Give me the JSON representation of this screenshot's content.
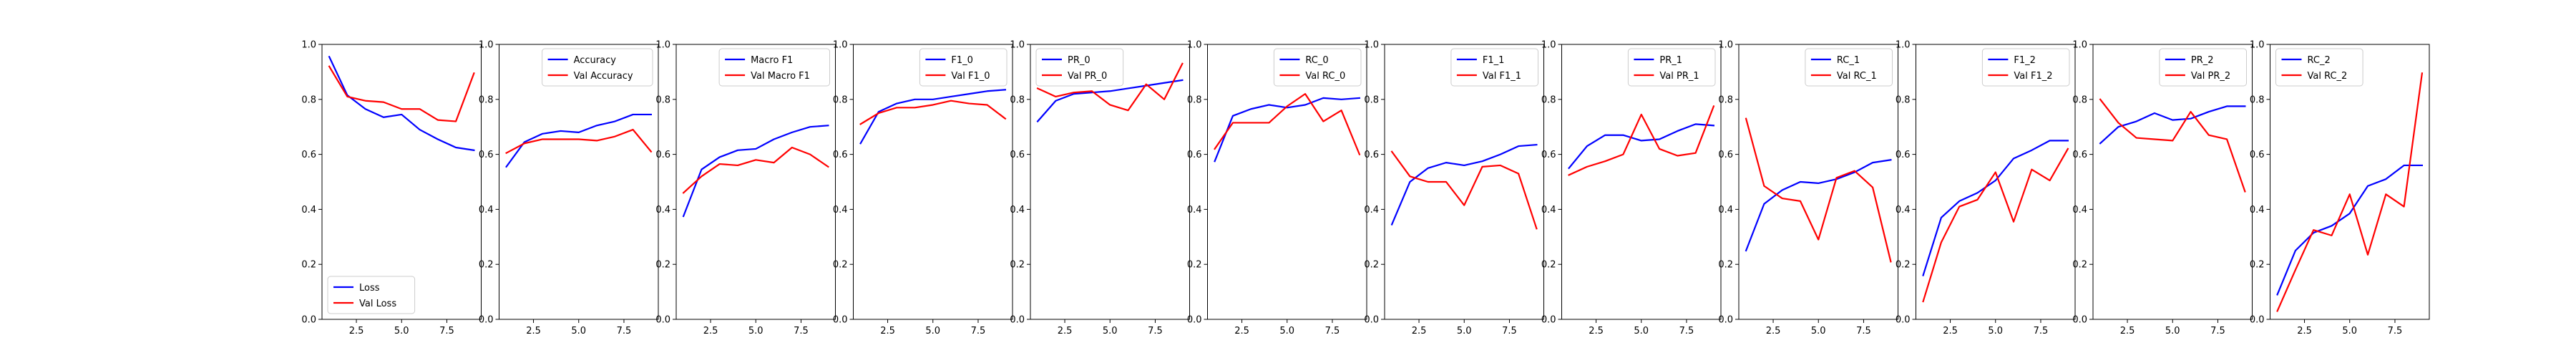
{
  "chart_data": [
    {
      "type": "line",
      "ylim": [
        0,
        1
      ],
      "ytick_labels": [
        "0.0",
        "0.2",
        "0.4",
        "0.6",
        "0.8",
        "1.0"
      ],
      "xlim": [
        0.6,
        9.4
      ],
      "xtick_values": [
        2.5,
        5.0,
        7.5
      ],
      "xtick_labels": [
        "2.5",
        "5.0",
        "7.5"
      ],
      "x": [
        1,
        2,
        3,
        4,
        5,
        6,
        7,
        8,
        9
      ],
      "legend_position": "lower-left",
      "series": [
        {
          "name": "Loss",
          "color": "#0000ff",
          "values": [
            0.955,
            0.815,
            0.765,
            0.735,
            0.745,
            0.69,
            0.655,
            0.625,
            0.615
          ]
        },
        {
          "name": "Val Loss",
          "color": "#ff0000",
          "values": [
            0.92,
            0.81,
            0.795,
            0.79,
            0.765,
            0.765,
            0.725,
            0.72,
            0.895
          ]
        }
      ]
    },
    {
      "type": "line",
      "ylim": [
        0,
        1
      ],
      "ytick_labels": [
        "0.0",
        "0.2",
        "0.4",
        "0.6",
        "0.8",
        "1.0"
      ],
      "xlim": [
        0.6,
        9.4
      ],
      "xtick_values": [
        2.5,
        5.0,
        7.5
      ],
      "xtick_labels": [
        "2.5",
        "5.0",
        "7.5"
      ],
      "x": [
        1,
        2,
        3,
        4,
        5,
        6,
        7,
        8,
        9
      ],
      "legend_position": "top-right",
      "series": [
        {
          "name": "Accuracy",
          "color": "#0000ff",
          "values": [
            0.555,
            0.645,
            0.675,
            0.685,
            0.68,
            0.705,
            0.72,
            0.745,
            0.745
          ]
        },
        {
          "name": "Val Accuracy",
          "color": "#ff0000",
          "values": [
            0.605,
            0.64,
            0.655,
            0.655,
            0.655,
            0.65,
            0.665,
            0.69,
            0.61
          ]
        }
      ]
    },
    {
      "type": "line",
      "ylim": [
        0,
        1
      ],
      "ytick_labels": [
        "0.0",
        "0.2",
        "0.4",
        "0.6",
        "0.8",
        "1.0"
      ],
      "xlim": [
        0.6,
        9.4
      ],
      "xtick_values": [
        2.5,
        5.0,
        7.5
      ],
      "xtick_labels": [
        "2.5",
        "5.0",
        "7.5"
      ],
      "x": [
        1,
        2,
        3,
        4,
        5,
        6,
        7,
        8,
        9
      ],
      "legend_position": "top-right",
      "series": [
        {
          "name": "Macro F1",
          "color": "#0000ff",
          "values": [
            0.375,
            0.545,
            0.59,
            0.615,
            0.62,
            0.655,
            0.68,
            0.7,
            0.705
          ]
        },
        {
          "name": "Val Macro F1",
          "color": "#ff0000",
          "values": [
            0.46,
            0.52,
            0.565,
            0.56,
            0.58,
            0.57,
            0.625,
            0.6,
            0.555
          ]
        }
      ]
    },
    {
      "type": "line",
      "ylim": [
        0,
        1
      ],
      "ytick_labels": [
        "0.0",
        "0.2",
        "0.4",
        "0.6",
        "0.8",
        "1.0"
      ],
      "xlim": [
        0.6,
        9.4
      ],
      "xtick_values": [
        2.5,
        5.0,
        7.5
      ],
      "xtick_labels": [
        "2.5",
        "5.0",
        "7.5"
      ],
      "x": [
        1,
        2,
        3,
        4,
        5,
        6,
        7,
        8,
        9
      ],
      "legend_position": "top-right",
      "series": [
        {
          "name": "F1_0",
          "color": "#0000ff",
          "values": [
            0.64,
            0.755,
            0.785,
            0.8,
            0.8,
            0.81,
            0.82,
            0.83,
            0.835
          ]
        },
        {
          "name": "Val F1_0",
          "color": "#ff0000",
          "values": [
            0.71,
            0.75,
            0.77,
            0.77,
            0.78,
            0.795,
            0.785,
            0.78,
            0.73
          ]
        }
      ]
    },
    {
      "type": "line",
      "ylim": [
        0,
        1
      ],
      "ytick_labels": [
        "0.0",
        "0.2",
        "0.4",
        "0.6",
        "0.8",
        "1.0"
      ],
      "xlim": [
        0.6,
        9.4
      ],
      "xtick_values": [
        2.5,
        5.0,
        7.5
      ],
      "xtick_labels": [
        "2.5",
        "5.0",
        "7.5"
      ],
      "x": [
        1,
        2,
        3,
        4,
        5,
        6,
        7,
        8,
        9
      ],
      "legend_position": "top-left",
      "series": [
        {
          "name": "PR_0",
          "color": "#0000ff",
          "values": [
            0.72,
            0.795,
            0.82,
            0.825,
            0.83,
            0.84,
            0.85,
            0.86,
            0.87
          ]
        },
        {
          "name": "Val PR_0",
          "color": "#ff0000",
          "values": [
            0.84,
            0.81,
            0.825,
            0.83,
            0.78,
            0.76,
            0.855,
            0.8,
            0.93
          ]
        }
      ]
    },
    {
      "type": "line",
      "ylim": [
        0,
        1
      ],
      "ytick_labels": [
        "0.0",
        "0.2",
        "0.4",
        "0.6",
        "0.8",
        "1.0"
      ],
      "xlim": [
        0.6,
        9.4
      ],
      "xtick_values": [
        2.5,
        5.0,
        7.5
      ],
      "xtick_labels": [
        "2.5",
        "5.0",
        "7.5"
      ],
      "x": [
        1,
        2,
        3,
        4,
        5,
        6,
        7,
        8,
        9
      ],
      "legend_position": "top-right",
      "series": [
        {
          "name": "RC_0",
          "color": "#0000ff",
          "values": [
            0.575,
            0.74,
            0.765,
            0.78,
            0.77,
            0.78,
            0.805,
            0.8,
            0.805
          ]
        },
        {
          "name": "Val RC_0",
          "color": "#ff0000",
          "values": [
            0.62,
            0.715,
            0.715,
            0.715,
            0.775,
            0.82,
            0.72,
            0.76,
            0.6
          ]
        }
      ]
    },
    {
      "type": "line",
      "ylim": [
        0,
        1
      ],
      "ytick_labels": [
        "0.0",
        "0.2",
        "0.4",
        "0.6",
        "0.8",
        "1.0"
      ],
      "xlim": [
        0.6,
        9.4
      ],
      "xtick_values": [
        2.5,
        5.0,
        7.5
      ],
      "xtick_labels": [
        "2.5",
        "5.0",
        "7.5"
      ],
      "x": [
        1,
        2,
        3,
        4,
        5,
        6,
        7,
        8,
        9
      ],
      "legend_position": "top-right",
      "series": [
        {
          "name": "F1_1",
          "color": "#0000ff",
          "values": [
            0.345,
            0.5,
            0.55,
            0.57,
            0.56,
            0.575,
            0.6,
            0.63,
            0.635
          ]
        },
        {
          "name": "Val F1_1",
          "color": "#ff0000",
          "values": [
            0.61,
            0.52,
            0.5,
            0.5,
            0.415,
            0.555,
            0.56,
            0.53,
            0.33
          ]
        }
      ]
    },
    {
      "type": "line",
      "ylim": [
        0,
        1
      ],
      "ytick_labels": [
        "0.0",
        "0.2",
        "0.4",
        "0.6",
        "0.8",
        "1.0"
      ],
      "xlim": [
        0.6,
        9.4
      ],
      "xtick_values": [
        2.5,
        5.0,
        7.5
      ],
      "xtick_labels": [
        "2.5",
        "5.0",
        "7.5"
      ],
      "x": [
        1,
        2,
        3,
        4,
        5,
        6,
        7,
        8,
        9
      ],
      "legend_position": "top-right",
      "series": [
        {
          "name": "PR_1",
          "color": "#0000ff",
          "values": [
            0.55,
            0.63,
            0.67,
            0.67,
            0.65,
            0.655,
            0.685,
            0.71,
            0.705
          ]
        },
        {
          "name": "Val PR_1",
          "color": "#ff0000",
          "values": [
            0.525,
            0.555,
            0.575,
            0.6,
            0.745,
            0.62,
            0.595,
            0.605,
            0.775
          ]
        }
      ]
    },
    {
      "type": "line",
      "ylim": [
        0,
        1
      ],
      "ytick_labels": [
        "0.0",
        "0.2",
        "0.4",
        "0.6",
        "0.8",
        "1.0"
      ],
      "xlim": [
        0.6,
        9.4
      ],
      "xtick_values": [
        2.5,
        5.0,
        7.5
      ],
      "xtick_labels": [
        "2.5",
        "5.0",
        "7.5"
      ],
      "x": [
        1,
        2,
        3,
        4,
        5,
        6,
        7,
        8,
        9
      ],
      "legend_position": "top-right",
      "series": [
        {
          "name": "RC_1",
          "color": "#0000ff",
          "values": [
            0.25,
            0.42,
            0.47,
            0.5,
            0.495,
            0.51,
            0.535,
            0.57,
            0.58
          ]
        },
        {
          "name": "Val RC_1",
          "color": "#ff0000",
          "values": [
            0.73,
            0.485,
            0.44,
            0.43,
            0.29,
            0.515,
            0.54,
            0.48,
            0.21
          ]
        }
      ]
    },
    {
      "type": "line",
      "ylim": [
        0,
        1
      ],
      "ytick_labels": [
        "0.0",
        "0.2",
        "0.4",
        "0.6",
        "0.8",
        "1.0"
      ],
      "xlim": [
        0.6,
        9.4
      ],
      "xtick_values": [
        2.5,
        5.0,
        7.5
      ],
      "xtick_labels": [
        "2.5",
        "5.0",
        "7.5"
      ],
      "x": [
        1,
        2,
        3,
        4,
        5,
        6,
        7,
        8,
        9
      ],
      "legend_position": "top-right",
      "series": [
        {
          "name": "F1_2",
          "color": "#0000ff",
          "values": [
            0.16,
            0.37,
            0.43,
            0.46,
            0.505,
            0.585,
            0.615,
            0.65,
            0.65
          ]
        },
        {
          "name": "Val F1_2",
          "color": "#ff0000",
          "values": [
            0.065,
            0.28,
            0.41,
            0.435,
            0.535,
            0.355,
            0.545,
            0.505,
            0.62
          ]
        }
      ]
    },
    {
      "type": "line",
      "ylim": [
        0,
        1
      ],
      "ytick_labels": [
        "0.0",
        "0.2",
        "0.4",
        "0.6",
        "0.8",
        "1.0"
      ],
      "xlim": [
        0.6,
        9.4
      ],
      "xtick_values": [
        2.5,
        5.0,
        7.5
      ],
      "xtick_labels": [
        "2.5",
        "5.0",
        "7.5"
      ],
      "x": [
        1,
        2,
        3,
        4,
        5,
        6,
        7,
        8,
        9
      ],
      "legend_position": "top-right",
      "series": [
        {
          "name": "PR_2",
          "color": "#0000ff",
          "values": [
            0.64,
            0.7,
            0.72,
            0.75,
            0.725,
            0.73,
            0.755,
            0.775,
            0.775
          ]
        },
        {
          "name": "Val PR_2",
          "color": "#ff0000",
          "values": [
            0.8,
            0.715,
            0.66,
            0.655,
            0.65,
            0.755,
            0.67,
            0.655,
            0.465
          ]
        }
      ]
    },
    {
      "type": "line",
      "ylim": [
        0,
        1
      ],
      "ytick_labels": [
        "0.0",
        "0.2",
        "0.4",
        "0.6",
        "0.8",
        "1.0"
      ],
      "xlim": [
        0.6,
        9.4
      ],
      "xtick_values": [
        2.5,
        5.0,
        7.5
      ],
      "xtick_labels": [
        "2.5",
        "5.0",
        "7.5"
      ],
      "x": [
        1,
        2,
        3,
        4,
        5,
        6,
        7,
        8,
        9
      ],
      "legend_position": "top-left",
      "series": [
        {
          "name": "RC_2",
          "color": "#0000ff",
          "values": [
            0.09,
            0.25,
            0.315,
            0.34,
            0.385,
            0.485,
            0.51,
            0.56,
            0.56
          ]
        },
        {
          "name": "Val RC_2",
          "color": "#ff0000",
          "values": [
            0.03,
            0.18,
            0.325,
            0.305,
            0.455,
            0.235,
            0.455,
            0.41,
            0.895
          ]
        }
      ]
    }
  ]
}
